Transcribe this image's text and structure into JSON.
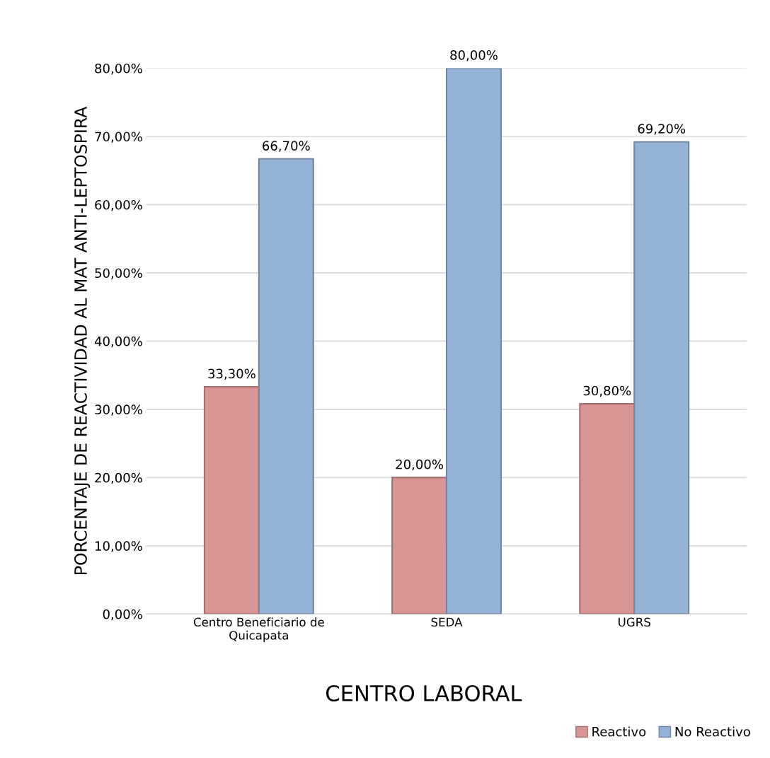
{
  "chart_data": {
    "type": "bar",
    "xlabel": "CENTRO LABORAL",
    "ylabel": "PORCENTAJE DE REACTIVIDAD AL MAT ANTI-LEPTOSPIRA",
    "categories": [
      "Centro Beneficiario de\nQuicapata",
      "SEDA",
      "UGRS"
    ],
    "series": [
      {
        "name": "Reactivo",
        "color": "#d99594",
        "values": [
          33.3,
          20.0,
          30.8
        ],
        "value_labels": [
          "33,30%",
          "20,00%",
          "30,80%"
        ]
      },
      {
        "name": "No Reactivo",
        "color": "#95b3d7",
        "values": [
          66.7,
          80.0,
          69.2
        ],
        "value_labels": [
          "66,70%",
          "80,00%",
          "69,20%"
        ]
      }
    ],
    "ylim": [
      0,
      80
    ],
    "yticks": [
      {
        "value": 0,
        "label": "0,00%"
      },
      {
        "value": 10,
        "label": "10,00%"
      },
      {
        "value": 20,
        "label": "20,00%"
      },
      {
        "value": 30,
        "label": "30,00%"
      },
      {
        "value": 40,
        "label": "40,00%"
      },
      {
        "value": 50,
        "label": "50,00%"
      },
      {
        "value": 60,
        "label": "60,00%"
      },
      {
        "value": 70,
        "label": "70,00%"
      },
      {
        "value": 80,
        "label": "80,00%"
      }
    ],
    "grid": "y",
    "legend": "bottom right"
  }
}
